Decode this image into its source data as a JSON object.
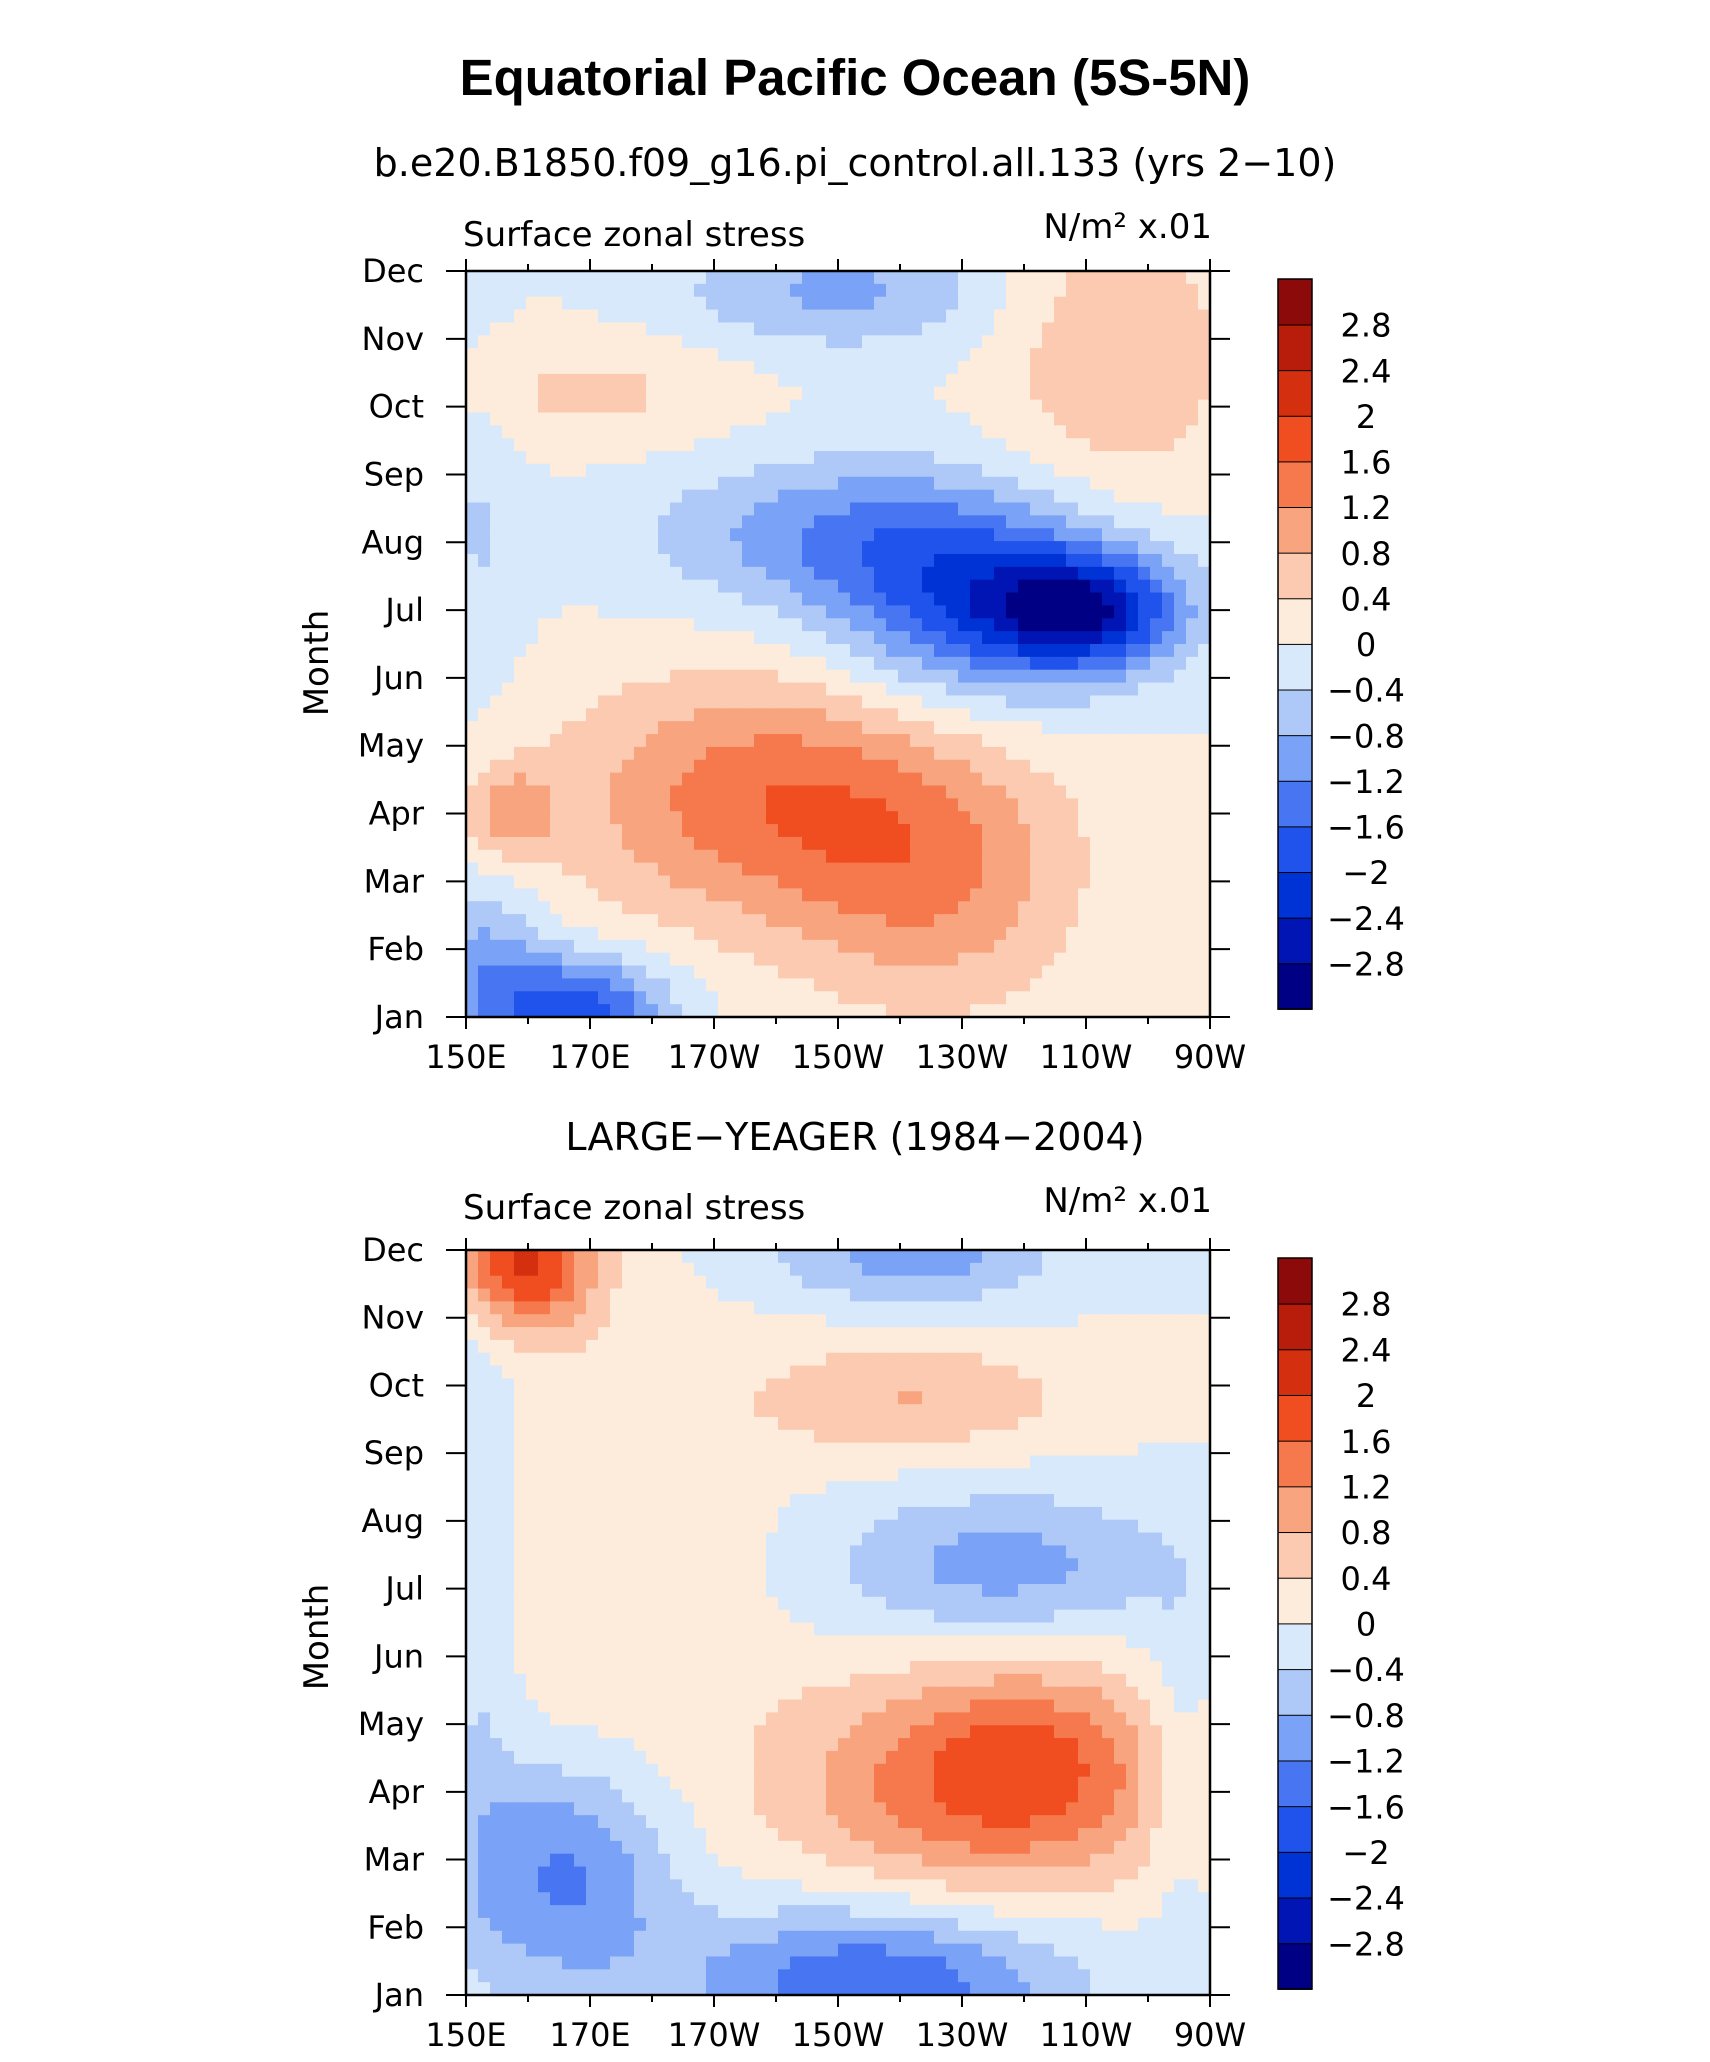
{
  "title": "Equatorial Pacific Ocean (5S-5N)",
  "chart_data": [
    {
      "type": "heatmap",
      "subtitle": "b.e20.B1850.f09_g16.pi_control.all.133 (yrs 2−10)",
      "left_label": "Surface zonal stress",
      "units": "N/m² x.01",
      "xlabel": "",
      "ylabel": "Month",
      "x_ticks": [
        "150E",
        "170E",
        "170W",
        "150W",
        "130W",
        "110W",
        "90W"
      ],
      "y_ticks": [
        "Jan",
        "Feb",
        "Mar",
        "Apr",
        "May",
        "Jun",
        "Jul",
        "Aug",
        "Sep",
        "Oct",
        "Nov",
        "Dec"
      ],
      "x_range_deg_east": [
        150,
        270
      ],
      "levels": [
        -2.8,
        -2.4,
        -2,
        -1.6,
        -1.2,
        -0.8,
        -0.4,
        0,
        0.4,
        0.8,
        1.2,
        1.6,
        2,
        2.4,
        2.8
      ],
      "features": [
        {
          "x": 168,
          "y": 0.1,
          "v": -1.9,
          "sx": 10,
          "sy": 0.55
        },
        {
          "x": 153,
          "y": 0.8,
          "v": -0.9,
          "sx": 7,
          "sy": 0.9
        },
        {
          "x": 157,
          "y": 3.0,
          "v": 0.9,
          "sx": 5,
          "sy": 0.5
        },
        {
          "x": 200,
          "y": 3.2,
          "v": 1.5,
          "sx": 24,
          "sy": 1.3
        },
        {
          "x": 226,
          "y": 1.8,
          "v": 0.9,
          "sx": 16,
          "sy": 1.3
        },
        {
          "x": 232,
          "y": 6.0,
          "v": -1.6,
          "sx": 16,
          "sy": 1.0
        },
        {
          "x": 250,
          "y": 6.0,
          "v": -2.3,
          "sx": 11,
          "sy": 0.6
        },
        {
          "x": 212,
          "y": 7.1,
          "v": -1.1,
          "sx": 22,
          "sy": 0.8
        },
        {
          "x": 255,
          "y": 9.8,
          "v": 0.8,
          "sx": 13,
          "sy": 1.5
        },
        {
          "x": 170,
          "y": 9.2,
          "v": 0.5,
          "sx": 17,
          "sy": 0.6
        },
        {
          "x": 210,
          "y": 10.7,
          "v": -0.9,
          "sx": 18,
          "sy": 0.6
        },
        {
          "x": 152,
          "y": 7.2,
          "v": -0.4,
          "sx": 5,
          "sy": 1.8
        }
      ]
    },
    {
      "type": "heatmap",
      "subtitle": "LARGE−YEAGER (1984−2004)",
      "left_label": "Surface zonal stress",
      "units": "N/m² x.01",
      "xlabel": "",
      "ylabel": "Month",
      "x_ticks": [
        "150E",
        "170E",
        "170W",
        "150W",
        "130W",
        "110W",
        "90W"
      ],
      "y_ticks": [
        "Jan",
        "Feb",
        "Mar",
        "Apr",
        "May",
        "Jun",
        "Jul",
        "Aug",
        "Sep",
        "Oct",
        "Nov",
        "Dec"
      ],
      "x_range_deg_east": [
        150,
        270
      ],
      "levels": [
        -2.8,
        -2.4,
        -2,
        -1.6,
        -1.2,
        -0.8,
        -0.4,
        0,
        0.4,
        0.8,
        1.2,
        1.6,
        2,
        2.4,
        2.8
      ],
      "features": [
        {
          "x": 159,
          "y": 10.8,
          "v": 2.1,
          "sx": 8,
          "sy": 0.7
        },
        {
          "x": 216,
          "y": 0.2,
          "v": -1.6,
          "sx": 22,
          "sy": 0.8
        },
        {
          "x": 166,
          "y": 1.8,
          "v": -1.3,
          "sx": 12,
          "sy": 1.2
        },
        {
          "x": 232,
          "y": 3.1,
          "v": 1.4,
          "sx": 22,
          "sy": 1.2
        },
        {
          "x": 243,
          "y": 3.5,
          "v": 0.7,
          "sx": 14,
          "sy": 1.0
        },
        {
          "x": 222,
          "y": 8.8,
          "v": 0.8,
          "sx": 18,
          "sy": 0.6
        },
        {
          "x": 236,
          "y": 6.3,
          "v": -1.0,
          "sx": 20,
          "sy": 0.8
        },
        {
          "x": 222,
          "y": 10.9,
          "v": -1.0,
          "sx": 16,
          "sy": 0.5
        },
        {
          "x": 152,
          "y": 6.5,
          "v": -0.6,
          "sx": 5,
          "sy": 3.5
        },
        {
          "x": 265,
          "y": 3.5,
          "v": -0.5,
          "sx": 4,
          "sy": 1.5
        },
        {
          "x": 170,
          "y": 6.5,
          "v": 0.4,
          "sx": 20,
          "sy": 2.5
        }
      ]
    }
  ],
  "colorbar": {
    "labels": [
      "2.8",
      "2.4",
      "2",
      "1.6",
      "1.2",
      "0.8",
      "0.4",
      "0",
      "−0.4",
      "−0.8",
      "−1.2",
      "−1.6",
      "−2",
      "−2.4",
      "−2.8"
    ],
    "colors": [
      "#000084",
      "#0015b4",
      "#0033d6",
      "#1f53ec",
      "#4876f3",
      "#7aa2f6",
      "#aec9f8",
      "#d8e9fb",
      "#fdebdc",
      "#fbcab0",
      "#f8a47e",
      "#f5794d",
      "#f04d20",
      "#d42f0e",
      "#b71d0a",
      "#8c0b0a"
    ]
  }
}
